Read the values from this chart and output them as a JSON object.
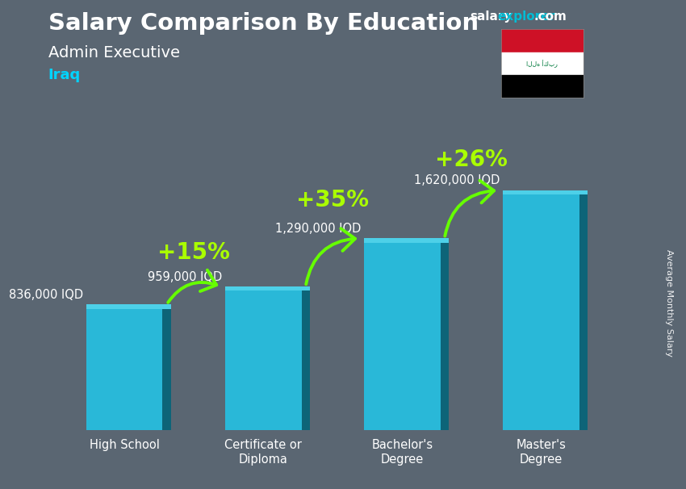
{
  "title": "Salary Comparison By Education",
  "subtitle": "Admin Executive",
  "country": "Iraq",
  "ylabel": "Average Monthly Salary",
  "website_salary": "salary",
  "website_explorer": "explorer",
  "website_dot_com": ".com",
  "categories": [
    "High School",
    "Certificate or\nDiploma",
    "Bachelor's\nDegree",
    "Master's\nDegree"
  ],
  "values": [
    836000,
    959000,
    1290000,
    1620000
  ],
  "labels": [
    "836,000 IQD",
    "959,000 IQD",
    "1,290,000 IQD",
    "1,620,000 IQD"
  ],
  "pct_labels": [
    "+15%",
    "+35%",
    "+26%"
  ],
  "bar_color_main": "#29b8d8",
  "bar_color_left": "#1a8fa8",
  "bar_color_right": "#0d6478",
  "bar_color_top": "#4dd0e8",
  "background_color": "#5a6672",
  "title_color": "#ffffff",
  "subtitle_color": "#ffffff",
  "country_color": "#00d4ff",
  "label_color": "#ffffff",
  "pct_color": "#aaff00",
  "arrow_color": "#66ff00",
  "website_salary_color": "#ffffff",
  "website_explorer_color": "#00bcd4",
  "flag_red": "#CE1126",
  "flag_white": "#FFFFFF",
  "flag_black": "#000000",
  "flag_green": "#007A3D",
  "ylim_max": 1950000,
  "figsize": [
    8.5,
    6.06
  ],
  "dpi": 100,
  "bar_width": 0.55,
  "bar_gap": 0.18
}
